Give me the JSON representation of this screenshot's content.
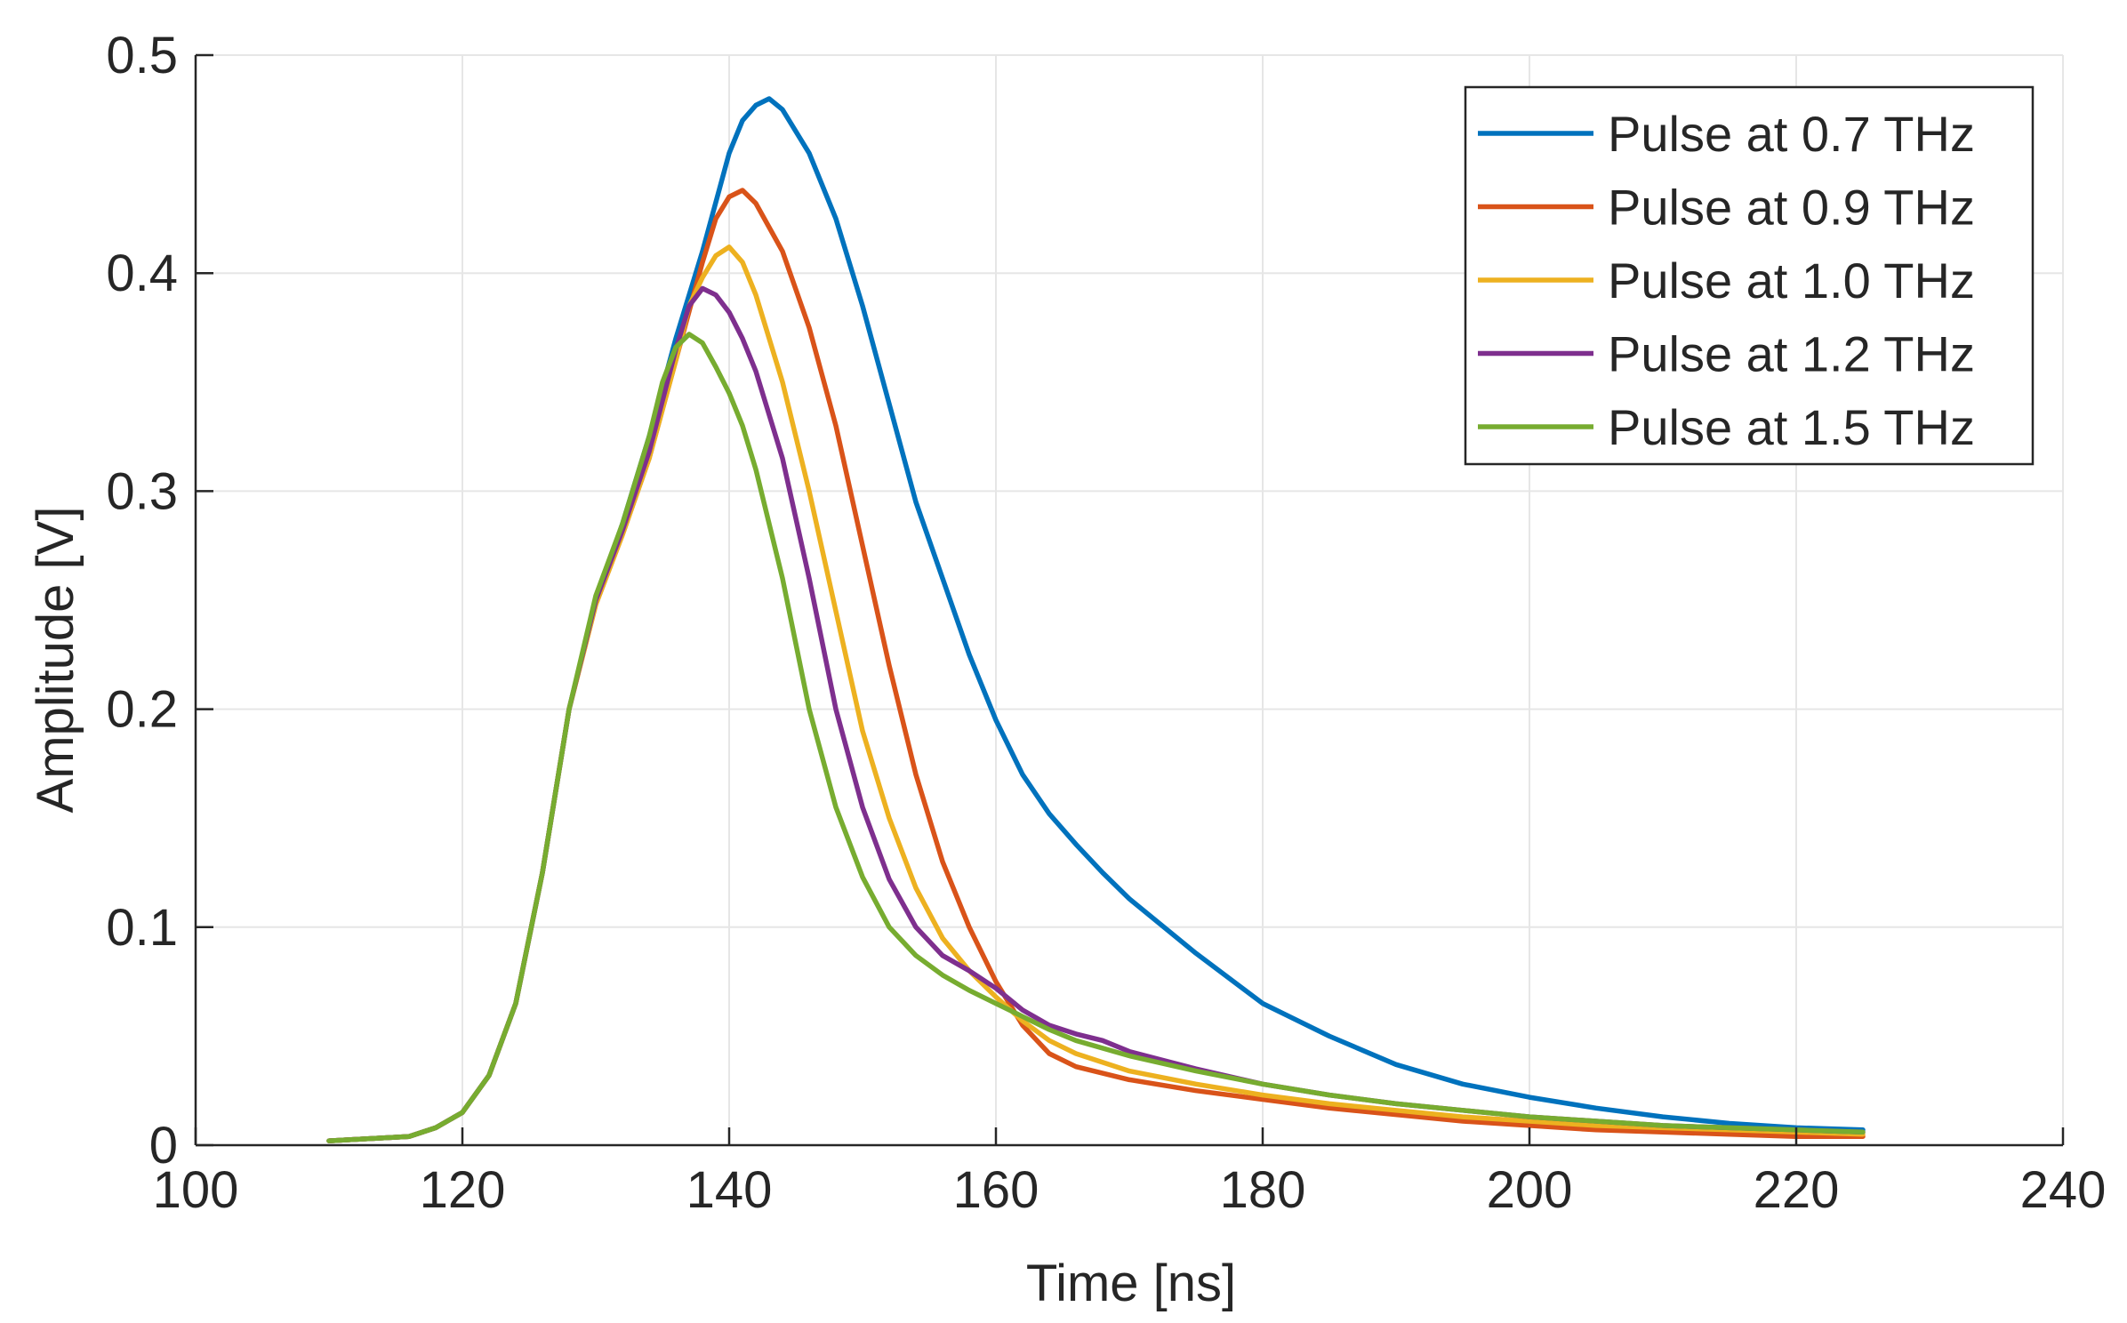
{
  "chart_data": {
    "type": "line",
    "title": "",
    "xlabel": "Time [ns]",
    "ylabel": "Amplitude [V]",
    "xlim": [
      100,
      240
    ],
    "ylim": [
      0,
      0.5
    ],
    "xticks": [
      100,
      120,
      140,
      160,
      180,
      200,
      220,
      240
    ],
    "xtick_labels": [
      "100",
      "120",
      "140",
      "160",
      "180",
      "200",
      "220",
      "240"
    ],
    "yticks": [
      0,
      0.1,
      0.2,
      0.3,
      0.4,
      0.5
    ],
    "ytick_labels": [
      "0",
      "0.1",
      "0.2",
      "0.3",
      "0.4",
      "0.5"
    ],
    "grid": true,
    "legend_position": "top-right",
    "series": [
      {
        "name": "Pulse at 0.7 THz",
        "color": "#0072BD",
        "x": [
          110,
          116,
          118,
          120,
          122,
          124,
          126,
          128,
          130,
          132,
          134,
          136,
          138,
          140,
          141,
          142,
          143,
          144,
          146,
          148,
          150,
          152,
          154,
          156,
          158,
          160,
          162,
          164,
          166,
          168,
          170,
          175,
          180,
          185,
          190,
          195,
          200,
          205,
          210,
          215,
          220,
          225
        ],
        "y": [
          0.002,
          0.004,
          0.008,
          0.015,
          0.032,
          0.065,
          0.125,
          0.2,
          0.25,
          0.285,
          0.325,
          0.37,
          0.41,
          0.455,
          0.47,
          0.477,
          0.48,
          0.475,
          0.455,
          0.425,
          0.385,
          0.34,
          0.295,
          0.26,
          0.225,
          0.195,
          0.17,
          0.152,
          0.138,
          0.125,
          0.113,
          0.088,
          0.065,
          0.05,
          0.037,
          0.028,
          0.022,
          0.017,
          0.013,
          0.01,
          0.008,
          0.007
        ]
      },
      {
        "name": "Pulse at 0.9 THz",
        "color": "#D95319",
        "x": [
          110,
          116,
          118,
          120,
          122,
          124,
          126,
          128,
          130,
          132,
          134,
          136,
          138,
          139,
          140,
          141,
          142,
          144,
          146,
          148,
          150,
          152,
          154,
          156,
          158,
          160,
          162,
          164,
          166,
          170,
          175,
          180,
          185,
          190,
          195,
          200,
          205,
          210,
          215,
          220,
          225
        ],
        "y": [
          0.002,
          0.004,
          0.008,
          0.015,
          0.032,
          0.065,
          0.125,
          0.2,
          0.248,
          0.28,
          0.315,
          0.36,
          0.405,
          0.425,
          0.435,
          0.438,
          0.432,
          0.41,
          0.375,
          0.33,
          0.275,
          0.22,
          0.17,
          0.13,
          0.1,
          0.075,
          0.055,
          0.042,
          0.036,
          0.03,
          0.025,
          0.021,
          0.017,
          0.014,
          0.011,
          0.009,
          0.007,
          0.006,
          0.005,
          0.004,
          0.004
        ]
      },
      {
        "name": "Pulse at 1.0 THz",
        "color": "#EDB120",
        "x": [
          110,
          116,
          118,
          120,
          122,
          124,
          126,
          128,
          130,
          132,
          134,
          136,
          137,
          138,
          139,
          140,
          141,
          142,
          144,
          146,
          148,
          150,
          152,
          154,
          156,
          158,
          160,
          162,
          164,
          166,
          170,
          175,
          180,
          185,
          190,
          195,
          200,
          205,
          210,
          215,
          220,
          225
        ],
        "y": [
          0.002,
          0.004,
          0.008,
          0.015,
          0.032,
          0.065,
          0.125,
          0.2,
          0.248,
          0.28,
          0.315,
          0.36,
          0.385,
          0.398,
          0.408,
          0.412,
          0.405,
          0.39,
          0.35,
          0.3,
          0.245,
          0.19,
          0.15,
          0.118,
          0.095,
          0.08,
          0.068,
          0.057,
          0.048,
          0.042,
          0.034,
          0.028,
          0.023,
          0.019,
          0.016,
          0.013,
          0.011,
          0.009,
          0.008,
          0.007,
          0.006,
          0.005
        ]
      },
      {
        "name": "Pulse at 1.2 THz",
        "color": "#7E2F8E",
        "x": [
          110,
          116,
          118,
          120,
          122,
          124,
          126,
          128,
          130,
          132,
          134,
          136,
          137,
          138,
          139,
          140,
          141,
          142,
          144,
          146,
          148,
          150,
          152,
          154,
          156,
          158,
          160,
          162,
          164,
          166,
          168,
          170,
          175,
          180,
          185,
          190,
          195,
          200,
          205,
          210,
          215,
          220,
          225
        ],
        "y": [
          0.002,
          0.004,
          0.008,
          0.015,
          0.032,
          0.065,
          0.125,
          0.2,
          0.25,
          0.282,
          0.318,
          0.365,
          0.385,
          0.393,
          0.39,
          0.382,
          0.37,
          0.355,
          0.315,
          0.26,
          0.2,
          0.155,
          0.122,
          0.1,
          0.087,
          0.08,
          0.072,
          0.062,
          0.055,
          0.051,
          0.048,
          0.043,
          0.035,
          0.028,
          0.023,
          0.019,
          0.016,
          0.013,
          0.011,
          0.009,
          0.008,
          0.007,
          0.006
        ]
      },
      {
        "name": "Pulse at 1.5 THz",
        "color": "#77AC30",
        "x": [
          110,
          116,
          118,
          120,
          122,
          124,
          126,
          128,
          130,
          132,
          134,
          135,
          136,
          137,
          138,
          139,
          140,
          141,
          142,
          144,
          146,
          148,
          150,
          152,
          154,
          156,
          158,
          160,
          162,
          164,
          166,
          170,
          175,
          180,
          185,
          190,
          195,
          200,
          205,
          210,
          215,
          220,
          225
        ],
        "y": [
          0.002,
          0.004,
          0.008,
          0.015,
          0.032,
          0.065,
          0.125,
          0.2,
          0.252,
          0.285,
          0.325,
          0.35,
          0.366,
          0.372,
          0.368,
          0.357,
          0.345,
          0.33,
          0.31,
          0.26,
          0.2,
          0.155,
          0.123,
          0.1,
          0.087,
          0.078,
          0.071,
          0.065,
          0.059,
          0.053,
          0.048,
          0.041,
          0.034,
          0.028,
          0.023,
          0.019,
          0.016,
          0.013,
          0.011,
          0.009,
          0.008,
          0.007,
          0.006
        ]
      }
    ]
  }
}
